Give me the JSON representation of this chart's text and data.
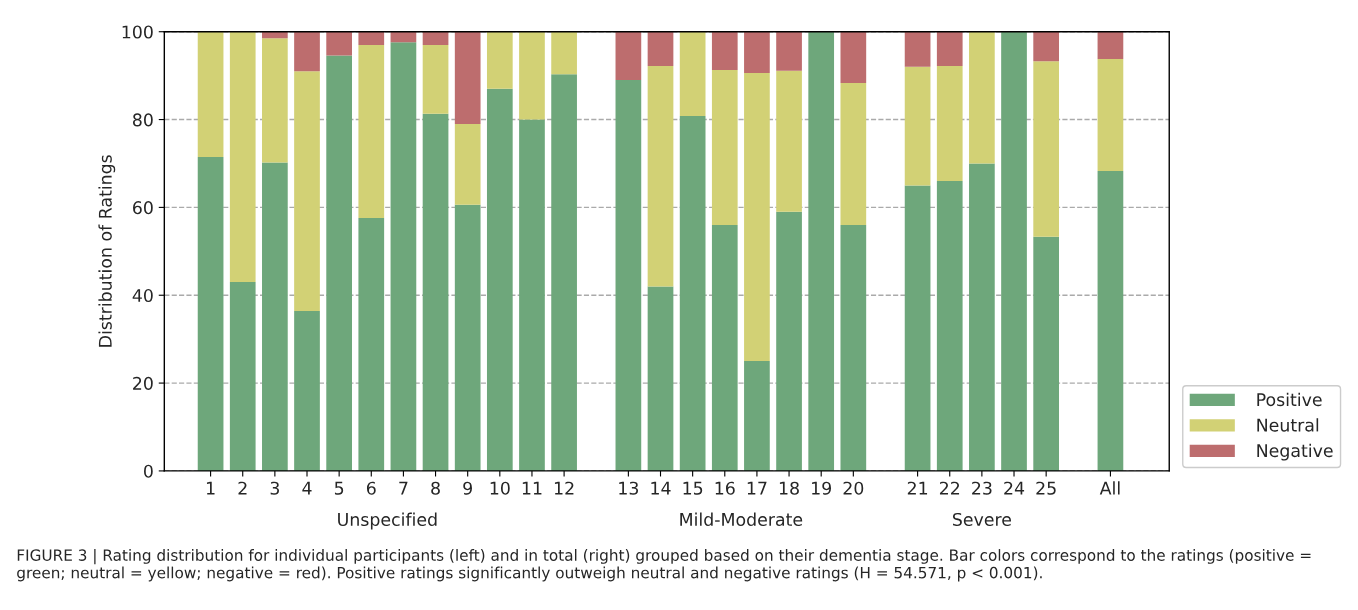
{
  "chart_data": {
    "type": "bar",
    "stacked": true,
    "ylabel": "Distribution of Ratings",
    "categories": [
      "1",
      "2",
      "3",
      "4",
      "5",
      "6",
      "7",
      "8",
      "9",
      "10",
      "11",
      "12",
      null,
      "13",
      "14",
      "15",
      "16",
      "17",
      "18",
      "19",
      "20",
      null,
      "21",
      "22",
      "23",
      "24",
      "25",
      null,
      "All"
    ],
    "series": [
      {
        "name": "Positive",
        "color": "#6ea77b",
        "values": [
          71.5,
          43,
          70.2,
          36.4,
          94.6,
          57.6,
          97.6,
          81.3,
          60.6,
          87,
          80,
          90.3,
          null,
          89,
          42,
          80.8,
          56,
          25,
          59,
          100,
          56,
          null,
          65,
          66,
          70,
          100,
          53.3,
          null,
          68.3
        ]
      },
      {
        "name": "Neutral",
        "color": "#d2d175",
        "values": [
          28.5,
          57,
          28.3,
          54.6,
          0,
          39.4,
          0,
          15.7,
          18.4,
          13,
          20,
          9.7,
          null,
          0,
          50.2,
          19.2,
          35.3,
          65.6,
          32.1,
          0,
          32.3,
          null,
          27,
          26.2,
          30,
          0,
          40,
          null,
          25.5
        ]
      },
      {
        "name": "Negative",
        "color": "#bd6d6e",
        "values": [
          0,
          0,
          1.5,
          9,
          5.4,
          3,
          2.4,
          3,
          21,
          0,
          0,
          0,
          null,
          11,
          7.8,
          0,
          8.7,
          9.4,
          8.9,
          0,
          11.7,
          null,
          8,
          7.8,
          0,
          0,
          6.7,
          null,
          6.2
        ]
      }
    ],
    "ylim": [
      0,
      100
    ],
    "yticks": [
      0,
      20,
      40,
      60,
      80,
      100
    ],
    "grid": "y",
    "legend": "right",
    "annotations": [
      "Unspecified",
      "Mild-Moderate",
      "Severe",
      "FIGURE 3 | Rating distribution for individual participants (left) and in total (right) grouped based on their dementia stage. Bar colors correspond to the ratings (positive = green; neutral = yellow; negative = red). Positive ratings significantly outweigh neutral and negative ratings (H = 54.571, p < 0.001)."
    ]
  }
}
